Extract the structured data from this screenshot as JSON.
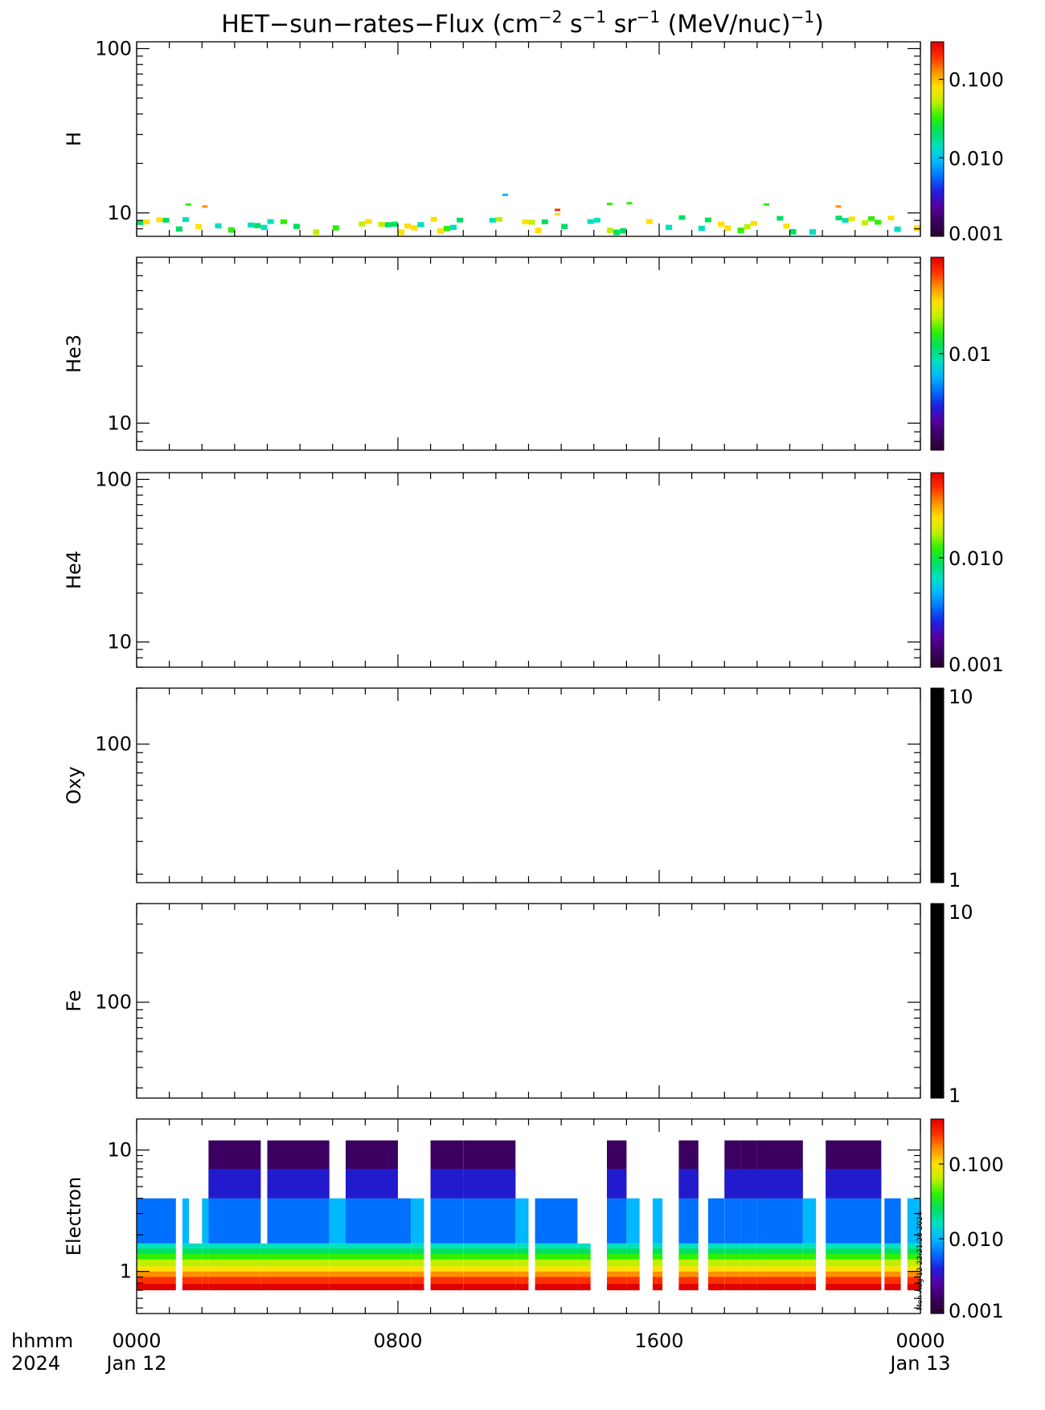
{
  "title": {
    "prefix": "HET−sun−rates−Flux (cm",
    "sup1": "−2",
    "mid1": " s",
    "sup2": "−1",
    "mid2": " sr",
    "sup3": "−1",
    "mid3": " (MeV/nuc)",
    "sup4": "−1",
    "suffix": ")"
  },
  "colors": {
    "colorbar": [
      "#2a0033",
      "#3b0060",
      "#5500a0",
      "#1f20e0",
      "#0070ff",
      "#00b8ff",
      "#00e0c0",
      "#00e060",
      "#30f000",
      "#c0f000",
      "#ffe000",
      "#ff9000",
      "#ff3000",
      "#e00000"
    ],
    "black_bar": "#000000"
  },
  "x_axis": {
    "tick_labels": [
      "0000",
      "0800",
      "1600",
      "0000"
    ],
    "date_labels": [
      "Jan 12",
      "",
      "",
      "Jan 13"
    ],
    "row_label_1": "hhmm",
    "row_label_2": "2024"
  },
  "stamp": "Mon Aug 12 22:21:20 2024",
  "chart_data": [
    {
      "type": "heatmap",
      "panel": "H",
      "ylabel": "H",
      "yscale": "log",
      "y_ticks": [
        "10",
        "100"
      ],
      "colorbar": {
        "scale": "log",
        "ticks": [
          "0.001",
          "0.010",
          "0.100"
        ],
        "range": [
          0.001,
          0.3
        ]
      },
      "x_range": [
        "2024-01-12 00:00",
        "2024-01-13 00:00"
      ],
      "description_values": "sparse pixels near 7-12 MeV/nuc, flux ~0.005-0.1"
    },
    {
      "type": "heatmap",
      "panel": "He3",
      "ylabel": "He3",
      "yscale": "log",
      "y_ticks": [
        "10"
      ],
      "colorbar": {
        "scale": "log",
        "ticks": [
          "0.01"
        ],
        "range": [
          0.002,
          0.05
        ]
      },
      "x_range": [
        "2024-01-12 00:00",
        "2024-01-13 00:00"
      ]
    },
    {
      "type": "heatmap",
      "panel": "He4",
      "ylabel": "He4",
      "yscale": "log",
      "y_ticks": [
        "10",
        "100"
      ],
      "colorbar": {
        "scale": "log",
        "ticks": [
          "0.001",
          "0.010"
        ],
        "range": [
          0.001,
          0.06
        ]
      },
      "x_range": [
        "2024-01-12 00:00",
        "2024-01-13 00:00"
      ]
    },
    {
      "type": "heatmap",
      "panel": "Oxy",
      "ylabel": "Oxy",
      "yscale": "log",
      "y_ticks": [
        "100"
      ],
      "colorbar": {
        "scale": "log",
        "ticks": [
          "1",
          "10"
        ],
        "range": [
          1,
          10
        ]
      },
      "x_range": [
        "2024-01-12 00:00",
        "2024-01-13 00:00"
      ]
    },
    {
      "type": "heatmap",
      "panel": "Fe",
      "ylabel": "Fe",
      "yscale": "log",
      "y_ticks": [
        "100"
      ],
      "colorbar": {
        "scale": "log",
        "ticks": [
          "1",
          "10"
        ],
        "range": [
          1,
          10
        ]
      },
      "x_range": [
        "2024-01-12 00:00",
        "2024-01-13 00:00"
      ]
    },
    {
      "type": "heatmap",
      "panel": "Electron",
      "ylabel": "Electron",
      "yscale": "log",
      "y_ticks": [
        "1",
        "10"
      ],
      "colorbar": {
        "scale": "log",
        "ticks": [
          "0.001",
          "0.010",
          "0.100"
        ],
        "range": [
          0.001,
          0.4
        ]
      },
      "x_range": [
        "2024-01-12 00:00",
        "2024-01-13 00:00"
      ],
      "energy_bins_top": [
        0.7,
        0.9,
        1.1,
        1.4,
        1.7,
        4.0,
        12.0
      ],
      "description_values": "flux ~0.2 at lowest energy, ~0.001 at highest; data gaps throughout"
    }
  ]
}
